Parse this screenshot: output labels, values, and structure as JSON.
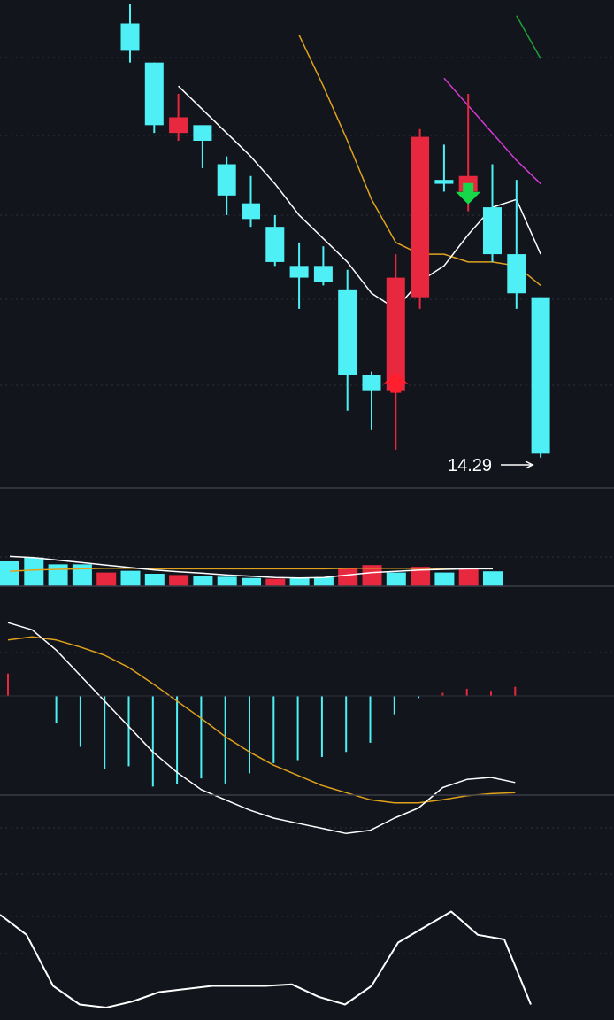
{
  "colors": {
    "background": "#13151d",
    "up": "#e8283f",
    "down": "#4ef0f5",
    "ma_white": "#ffffff",
    "ma_yellow": "#e0a21c",
    "ma_magenta": "#d23ad2",
    "ma_green": "#1f9e38",
    "buy_marker": "#ff1f2e",
    "sell_marker": "#17d64a"
  },
  "chart_data": [
    {
      "type": "candlestick",
      "title": "",
      "grid": true,
      "price_label": "14.29",
      "candles": [
        {
          "o": 21.9,
          "h": 22.4,
          "l": 20.9,
          "c": 21.2
        },
        {
          "o": 20.9,
          "h": 20.9,
          "l": 19.1,
          "c": 19.3
        },
        {
          "o": 19.1,
          "h": 20.1,
          "l": 18.9,
          "c": 19.5
        },
        {
          "o": 19.3,
          "h": 19.3,
          "l": 18.2,
          "c": 18.9
        },
        {
          "o": 18.3,
          "h": 18.5,
          "l": 17.0,
          "c": 17.5
        },
        {
          "o": 17.3,
          "h": 18.0,
          "l": 16.7,
          "c": 16.9
        },
        {
          "o": 16.7,
          "h": 17.0,
          "l": 15.7,
          "c": 15.8
        },
        {
          "o": 15.7,
          "h": 16.3,
          "l": 14.6,
          "c": 15.4
        },
        {
          "o": 15.7,
          "h": 16.2,
          "l": 15.2,
          "c": 15.3
        },
        {
          "o": 15.1,
          "h": 15.6,
          "l": 12.0,
          "c": 12.9
        },
        {
          "o": 12.9,
          "h": 13.0,
          "l": 11.5,
          "c": 12.5
        },
        {
          "o": 12.5,
          "h": 16.0,
          "l": 11.0,
          "c": 15.4
        },
        {
          "o": 14.9,
          "h": 19.2,
          "l": 14.6,
          "c": 19.0
        },
        {
          "o": 17.9,
          "h": 18.8,
          "l": 17.6,
          "c": 17.8
        },
        {
          "o": 17.6,
          "h": 20.1,
          "l": 17.1,
          "c": 18.0
        },
        {
          "o": 17.2,
          "h": 18.3,
          "l": 15.8,
          "c": 16.0
        },
        {
          "o": 16.0,
          "h": 17.9,
          "l": 14.6,
          "c": 15.0
        },
        {
          "o": 14.9,
          "h": 14.9,
          "l": 10.8,
          "c": 10.9
        }
      ],
      "markers": [
        {
          "index": 11,
          "type": "buy"
        },
        {
          "index": 14,
          "type": "sell"
        }
      ],
      "ma_white": [
        null,
        null,
        20.3,
        19.7,
        19.1,
        18.5,
        17.8,
        17.0,
        16.4,
        15.8,
        15.0,
        14.6,
        15.3,
        15.7,
        16.5,
        17.2,
        17.4,
        16.0
      ],
      "ma_yellow": [
        null,
        null,
        null,
        null,
        null,
        null,
        null,
        21.6,
        20.3,
        18.9,
        17.4,
        16.3,
        16.0,
        16.0,
        15.8,
        15.8,
        15.7,
        15.2
      ],
      "ma_magenta": [
        null,
        null,
        null,
        null,
        null,
        null,
        null,
        null,
        null,
        null,
        null,
        null,
        null,
        20.5,
        19.8,
        19.1,
        18.4,
        17.8
      ],
      "ma_green": [
        null,
        null,
        null,
        null,
        null,
        null,
        null,
        null,
        null,
        null,
        null,
        null,
        null,
        null,
        null,
        null,
        22.1,
        21.0
      ]
    },
    {
      "type": "bar",
      "title": "",
      "values": [
        1.0,
        1.15,
        0.88,
        0.88,
        0.55,
        0.62,
        0.5,
        0.45,
        0.4,
        0.38,
        0.33,
        0.3,
        0.33,
        0.36,
        0.7,
        0.85,
        0.55,
        0.78,
        0.55,
        0.68,
        0.6
      ],
      "up": [
        false,
        false,
        false,
        false,
        true,
        false,
        false,
        true,
        false,
        false,
        false,
        true,
        false,
        false,
        true,
        true,
        false,
        true,
        false,
        true,
        false
      ],
      "ma_white": [
        1.2,
        1.15,
        1.05,
        0.95,
        0.85,
        0.75,
        0.65,
        0.58,
        0.52,
        0.45,
        0.4,
        0.35,
        0.33,
        0.35,
        0.45,
        0.55,
        0.6,
        0.65,
        0.68,
        0.7,
        0.7
      ],
      "ma_yellow": [
        0.6,
        0.65,
        0.68,
        0.7,
        0.72,
        0.72,
        0.7,
        0.7,
        0.7,
        0.7,
        0.7,
        0.7,
        0.7,
        0.7,
        0.72,
        0.72,
        0.72,
        0.72,
        0.72,
        0.72,
        0.72
      ]
    },
    {
      "type": "macd",
      "title": "",
      "histogram": [
        0.22,
        0,
        -0.27,
        -0.5,
        -0.72,
        -0.69,
        -0.89,
        -0.87,
        -0.81,
        -0.86,
        -0.76,
        -0.66,
        -0.63,
        -0.6,
        -0.55,
        -0.46,
        -0.18,
        -0.02,
        0.03,
        0.07,
        0.05,
        0.09
      ],
      "dif": [
        0.72,
        0.65,
        0.45,
        0.2,
        -0.05,
        -0.3,
        -0.55,
        -0.75,
        -0.92,
        -1.02,
        -1.12,
        -1.2,
        -1.25,
        -1.3,
        -1.35,
        -1.32,
        -1.2,
        -1.1,
        -0.9,
        -0.82,
        -0.8,
        -0.85
      ],
      "dea": [
        0.55,
        0.58,
        0.55,
        0.48,
        0.4,
        0.28,
        0.12,
        -0.05,
        -0.22,
        -0.4,
        -0.55,
        -0.68,
        -0.78,
        -0.88,
        -0.95,
        -1.02,
        -1.05,
        -1.05,
        -1.02,
        -0.98,
        -0.96,
        -0.95
      ]
    },
    {
      "type": "line",
      "title": "",
      "values": [
        68,
        55,
        22,
        10,
        8,
        12,
        18,
        20,
        22,
        22,
        22,
        23,
        15,
        10,
        22,
        50,
        60,
        70,
        55,
        52,
        10
      ]
    }
  ]
}
